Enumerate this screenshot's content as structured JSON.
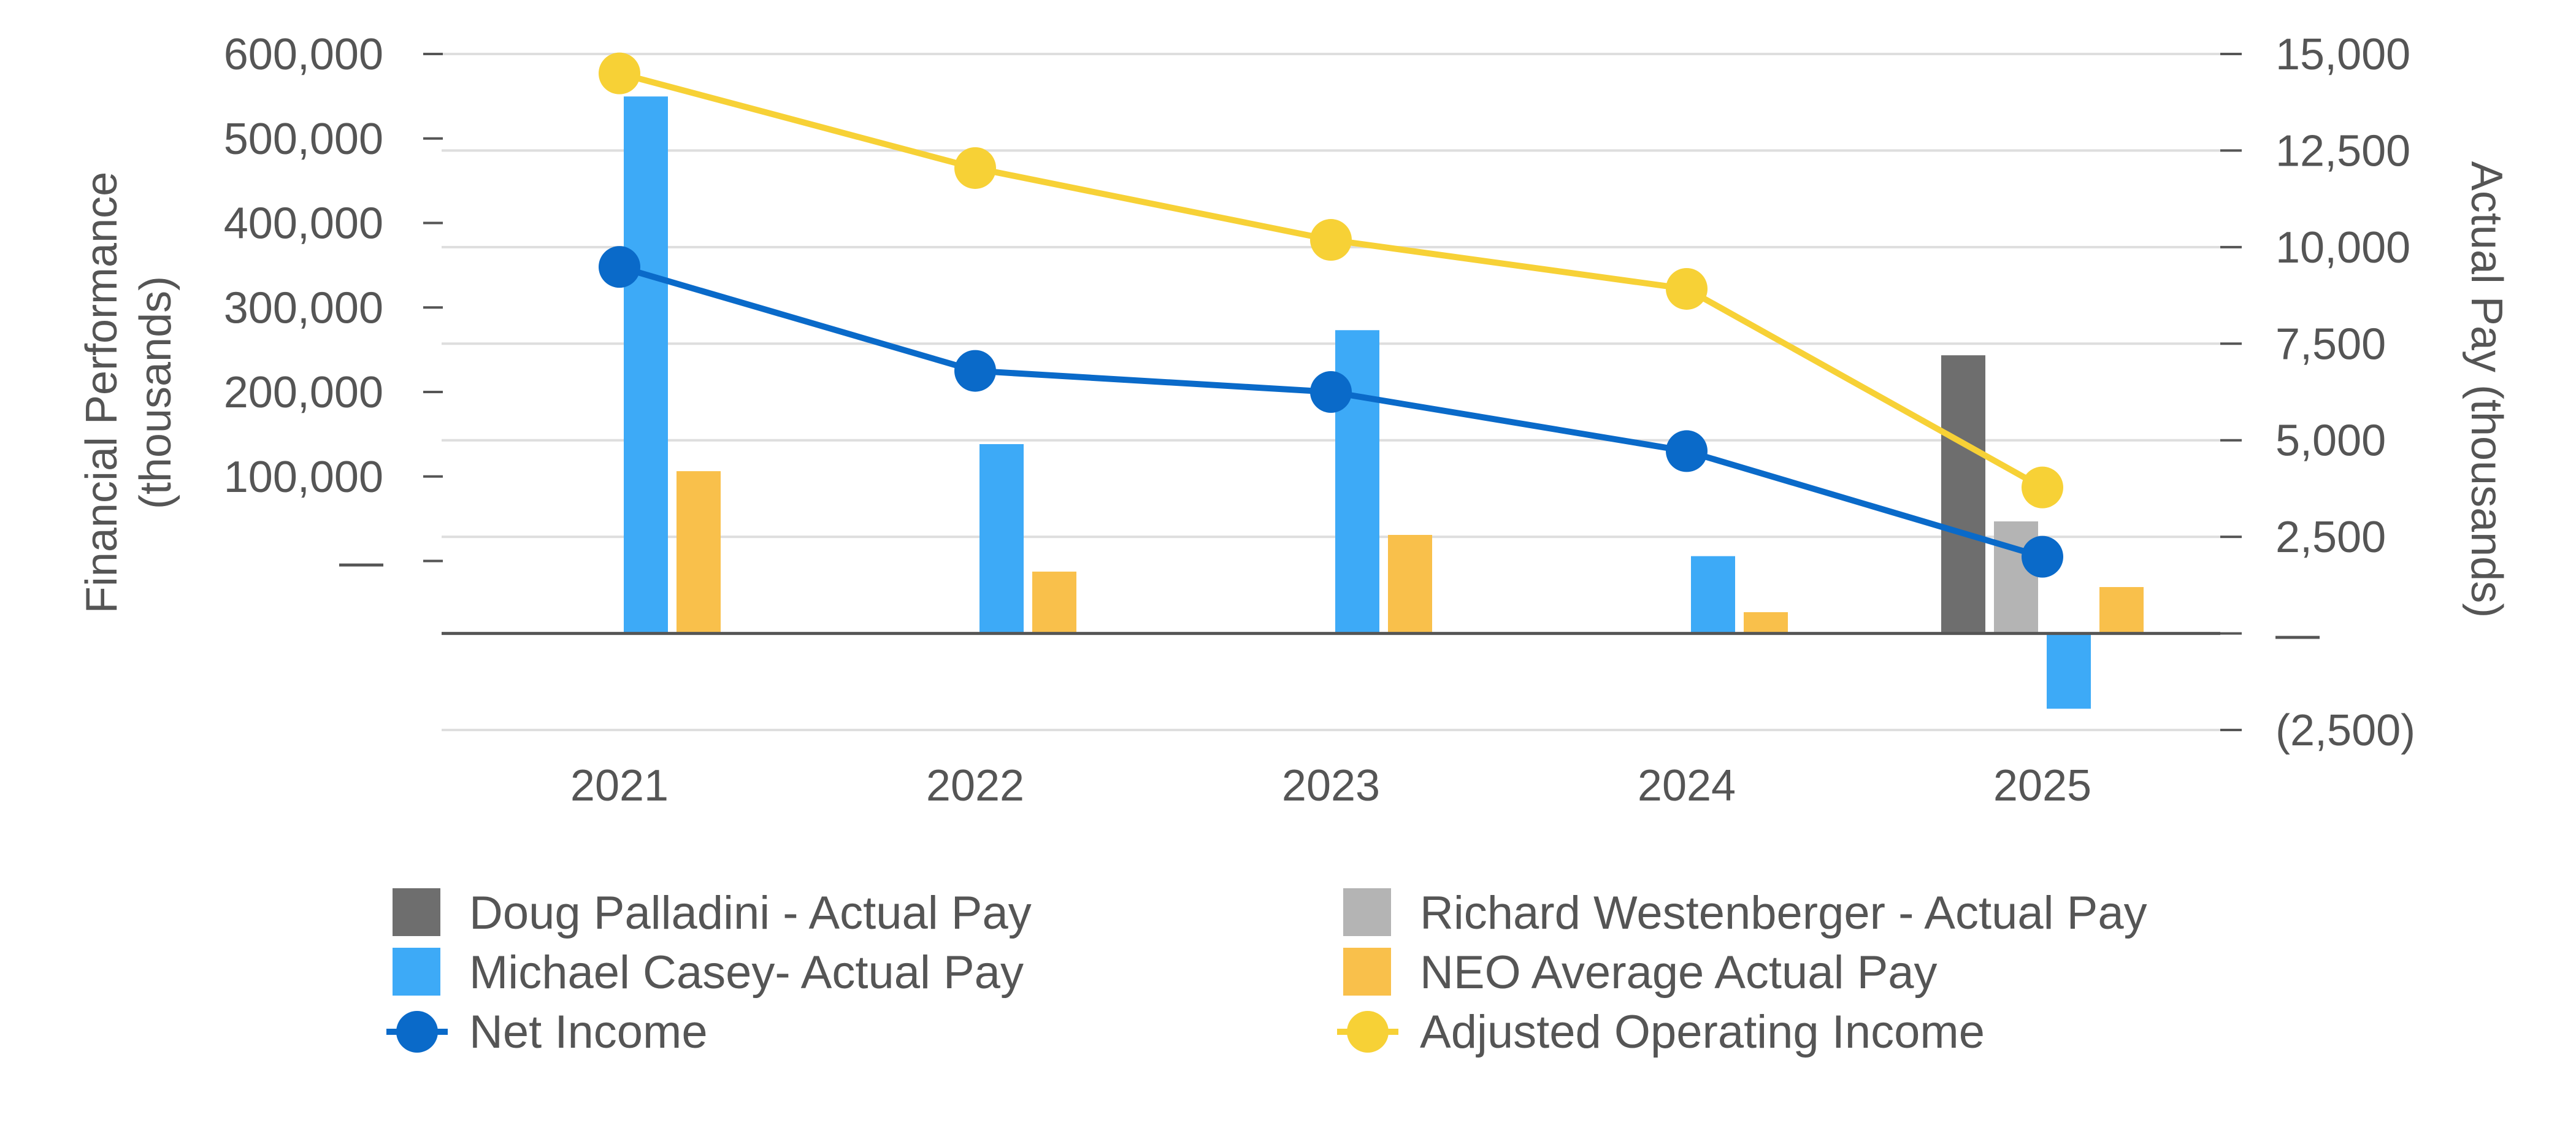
{
  "chart_data": {
    "type": "bar+line",
    "categories": [
      "2021",
      "2022",
      "2023",
      "2024",
      "2025"
    ],
    "left_axis": {
      "label": "Financial Performance\n(thousands)",
      "ylim": [
        -200000,
        600000
      ],
      "ticks": [
        -200000,
        -100000,
        0,
        100000,
        200000,
        300000,
        400000,
        500000,
        600000
      ],
      "tick_labels": [
        "—",
        "100,000",
        "200,000",
        "300,000",
        "400,000",
        "500,000",
        "600,000"
      ],
      "label_values": [
        0,
        100000,
        200000,
        300000,
        400000,
        500000,
        600000
      ]
    },
    "right_axis": {
      "label": "Actual Pay (thousands)",
      "ylim": [
        -2500,
        15000
      ],
      "label_values": [
        -2500,
        0,
        2500,
        5000,
        7500,
        10000,
        12500,
        15000
      ],
      "tick_labels": [
        "(2,500)",
        "—",
        "2,500",
        "5,000",
        "7,500",
        "10,000",
        "12,500",
        "15,000"
      ]
    },
    "bar_series": [
      {
        "name": "Doug Palladini -  Actual Pay",
        "color": "#6e6e6e",
        "values": [
          null,
          null,
          null,
          null,
          7200
        ]
      },
      {
        "name": "Richard Westenberger -  Actual Pay",
        "color": "#b4b4b4",
        "values": [
          null,
          null,
          null,
          null,
          2900
        ]
      },
      {
        "name": "Michael Casey-  Actual Pay",
        "color": "#3daaf7",
        "values": [
          13900,
          4900,
          7850,
          2000,
          -1950
        ]
      },
      {
        "name": "NEO Average Actual Pay",
        "color": "#f9c04b",
        "values": [
          4200,
          1600,
          2550,
          550,
          1200
        ]
      }
    ],
    "line_series": [
      {
        "name": "Net Income",
        "color": "#0a6ac9",
        "values": [
          348000,
          225000,
          200000,
          130000,
          5000
        ]
      },
      {
        "name": "Adjusted Operating Income",
        "color": "#f7d136",
        "values": [
          577000,
          465000,
          380000,
          322000,
          87000
        ]
      }
    ],
    "legend": [
      [
        "Doug Palladini -  Actual Pay",
        "Richard Westenberger -  Actual Pay"
      ],
      [
        "Michael Casey-  Actual Pay",
        "NEO Average Actual Pay"
      ],
      [
        "Net Income",
        "Adjusted Operating Income"
      ]
    ],
    "legend_position": "bottom",
    "grid": true
  }
}
